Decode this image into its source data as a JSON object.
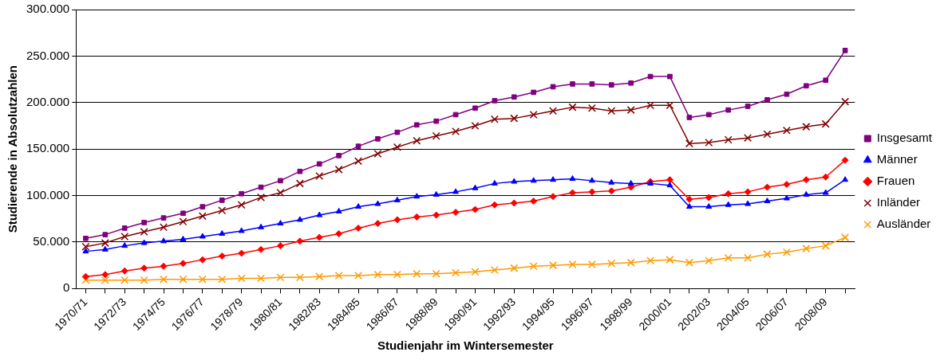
{
  "chart_data": {
    "type": "line",
    "xlabel": "Studienjahr im Wintersemester",
    "ylabel": "Studierende in Absolutzahlen",
    "categories": [
      "1970/71",
      null,
      "1972/73",
      null,
      "1974/75",
      null,
      "1976/77",
      null,
      "1978/79",
      null,
      "1980/81",
      null,
      "1982/83",
      null,
      "1984/85",
      null,
      "1986/87",
      null,
      "1988/89",
      null,
      "1990/91",
      null,
      "1992/93",
      null,
      "1994/95",
      null,
      "1996/97",
      null,
      "1998/99",
      null,
      "2000/01",
      null,
      "2002/03",
      null,
      "2004/05",
      null,
      "2006/07",
      null,
      "2008/09",
      null
    ],
    "series": [
      {
        "name": "Insgesamt",
        "color": "#800080",
        "marker": "square",
        "values": [
          54000,
          58000,
          65000,
          71000,
          76000,
          81000,
          88000,
          95000,
          102000,
          109000,
          116000,
          126000,
          134000,
          143000,
          153000,
          161000,
          168000,
          176000,
          180000,
          187000,
          194000,
          202000,
          206000,
          211000,
          217000,
          220000,
          220000,
          219000,
          221000,
          228000,
          228000,
          184000,
          187000,
          192000,
          196000,
          203000,
          209000,
          218000,
          224000,
          256000
        ]
      },
      {
        "name": "Männer",
        "color": "#0000ff",
        "marker": "triangle",
        "values": [
          40000,
          42000,
          46000,
          49000,
          51000,
          53000,
          56000,
          59000,
          62000,
          66000,
          70000,
          74000,
          79000,
          83000,
          88000,
          91000,
          95000,
          99000,
          101000,
          104000,
          108000,
          113000,
          115000,
          116000,
          117000,
          118000,
          116000,
          114000,
          113000,
          113000,
          111000,
          88000,
          88000,
          90000,
          91000,
          94000,
          97000,
          101000,
          103000,
          117000
        ]
      },
      {
        "name": "Frauen",
        "color": "#ff0000",
        "marker": "diamond",
        "values": [
          13000,
          15000,
          19000,
          22000,
          24000,
          27000,
          31000,
          35000,
          38000,
          42000,
          46000,
          51000,
          55000,
          59000,
          65000,
          70000,
          74000,
          77000,
          79000,
          82000,
          85000,
          90000,
          92000,
          94000,
          99000,
          103000,
          104000,
          105000,
          109000,
          115000,
          117000,
          96000,
          98000,
          102000,
          104000,
          109000,
          112000,
          117000,
          120000,
          138000
        ]
      },
      {
        "name": "Inländer",
        "color": "#800000",
        "marker": "cross",
        "values": [
          45000,
          49000,
          56000,
          61000,
          66000,
          72000,
          78000,
          84000,
          90000,
          98000,
          103000,
          113000,
          121000,
          128000,
          137000,
          145000,
          152000,
          159000,
          164000,
          169000,
          175000,
          182000,
          183000,
          187000,
          191000,
          195000,
          194000,
          191000,
          192000,
          197000,
          197000,
          156000,
          157000,
          160000,
          162000,
          166000,
          170000,
          174000,
          177000,
          201000
        ]
      },
      {
        "name": "Ausländer",
        "color": "#ff9900",
        "marker": "cross",
        "values": [
          9000,
          9000,
          9000,
          9000,
          10000,
          10000,
          10000,
          10000,
          11000,
          11000,
          12000,
          12000,
          13000,
          14000,
          14000,
          15000,
          15000,
          16000,
          16000,
          17000,
          18000,
          20000,
          22000,
          24000,
          25000,
          26000,
          26000,
          27000,
          28000,
          30000,
          31000,
          28000,
          30000,
          33000,
          33000,
          37000,
          39000,
          43000,
          46000,
          55000
        ]
      }
    ],
    "ylim": [
      0,
      300000
    ],
    "yticks": [
      {
        "value": 0,
        "label": "0"
      },
      {
        "value": 50000,
        "label": "50.000"
      },
      {
        "value": 100000,
        "label": "100.000"
      },
      {
        "value": 150000,
        "label": "150.000"
      },
      {
        "value": 200000,
        "label": "200.000"
      },
      {
        "value": 250000,
        "label": "250.000"
      },
      {
        "value": 300000,
        "label": "300.000"
      }
    ],
    "grid": "y",
    "legend": "right"
  }
}
